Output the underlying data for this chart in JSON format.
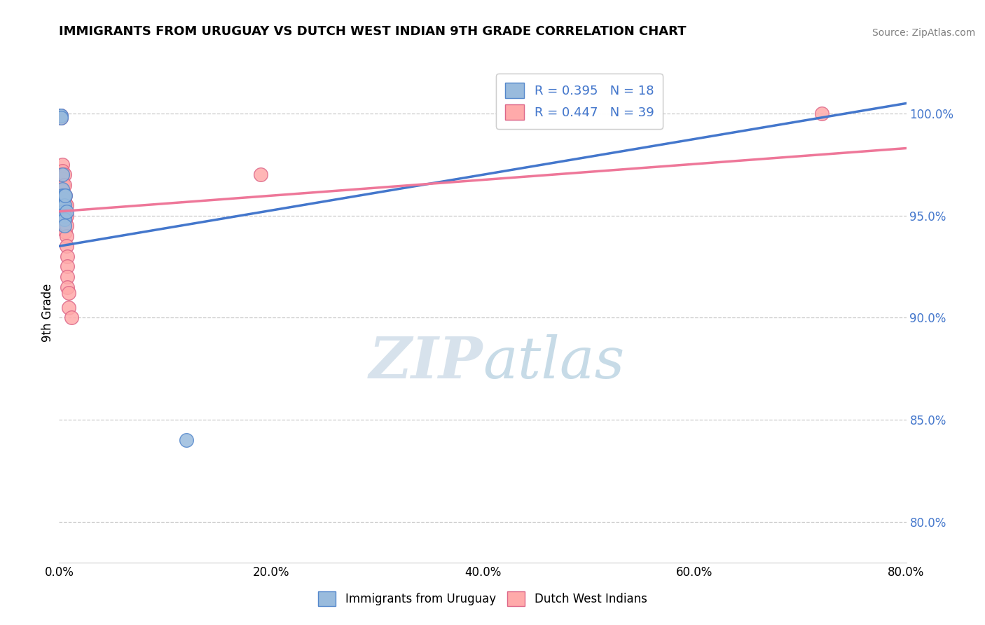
{
  "title": "IMMIGRANTS FROM URUGUAY VS DUTCH WEST INDIAN 9TH GRADE CORRELATION CHART",
  "source": "Source: ZipAtlas.com",
  "ylabel": "9th Grade",
  "x_ticks_labels": [
    "0.0%",
    "20.0%",
    "40.0%",
    "60.0%",
    "80.0%"
  ],
  "x_tick_vals": [
    0.0,
    0.2,
    0.4,
    0.6,
    0.8
  ],
  "y_tick_labels": [
    "80.0%",
    "85.0%",
    "90.0%",
    "95.0%",
    "100.0%"
  ],
  "y_tick_vals": [
    0.8,
    0.85,
    0.9,
    0.95,
    1.0
  ],
  "xlim": [
    0.0,
    0.8
  ],
  "ylim": [
    0.78,
    1.025
  ],
  "blue_R": 0.395,
  "blue_N": 18,
  "pink_R": 0.447,
  "pink_N": 39,
  "blue_color": "#99BBDD",
  "pink_color": "#FFAAAA",
  "blue_edge_color": "#5588CC",
  "pink_edge_color": "#DD6688",
  "blue_line_color": "#4477CC",
  "pink_line_color": "#EE7799",
  "legend_blue_label": "Immigrants from Uruguay",
  "legend_pink_label": "Dutch West Indians",
  "blue_x": [
    0.001,
    0.002,
    0.002,
    0.003,
    0.003,
    0.003,
    0.003,
    0.004,
    0.004,
    0.004,
    0.005,
    0.005,
    0.005,
    0.005,
    0.005,
    0.006,
    0.007,
    0.12
  ],
  "blue_y": [
    0.999,
    0.999,
    0.998,
    0.97,
    0.963,
    0.96,
    0.957,
    0.958,
    0.955,
    0.952,
    0.96,
    0.955,
    0.95,
    0.948,
    0.945,
    0.96,
    0.952,
    0.84
  ],
  "pink_x": [
    0.001,
    0.001,
    0.002,
    0.002,
    0.003,
    0.003,
    0.003,
    0.003,
    0.004,
    0.004,
    0.004,
    0.004,
    0.005,
    0.005,
    0.005,
    0.005,
    0.005,
    0.005,
    0.005,
    0.005,
    0.006,
    0.006,
    0.006,
    0.006,
    0.006,
    0.007,
    0.007,
    0.007,
    0.007,
    0.007,
    0.008,
    0.008,
    0.008,
    0.008,
    0.009,
    0.009,
    0.012,
    0.19,
    0.72
  ],
  "pink_y": [
    0.999,
    0.999,
    0.999,
    0.998,
    0.975,
    0.972,
    0.97,
    0.968,
    0.965,
    0.962,
    0.96,
    0.958,
    0.97,
    0.965,
    0.96,
    0.958,
    0.955,
    0.952,
    0.948,
    0.945,
    0.96,
    0.956,
    0.952,
    0.948,
    0.942,
    0.955,
    0.95,
    0.945,
    0.94,
    0.935,
    0.93,
    0.925,
    0.92,
    0.915,
    0.912,
    0.905,
    0.9,
    0.97,
    1.0
  ]
}
